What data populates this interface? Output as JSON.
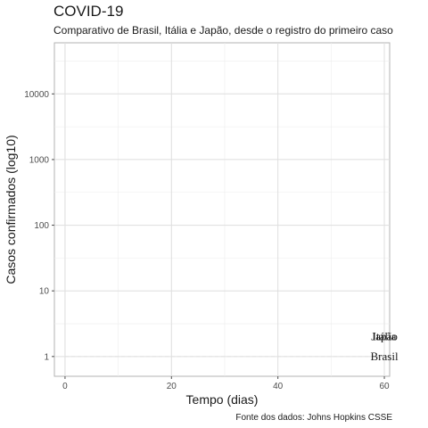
{
  "chart_data": {
    "type": "line",
    "title": "COVID-19",
    "subtitle": "Comparativo de Brasil, Itália e Japão, desde o registro do primeiro caso",
    "xlabel": "Tempo (dias)",
    "ylabel": "Casos confirmados (log10)",
    "caption": "Fonte dos dados: Johns Hopkins CSSE",
    "xlim": [
      -2,
      61
    ],
    "x_ticks": [
      0,
      20,
      40,
      60
    ],
    "y_scale": "log10",
    "ylim": [
      0.5,
      60000
    ],
    "y_ticks": [
      1,
      10,
      100,
      1000,
      10000
    ],
    "y_tick_labels": [
      "1",
      "10",
      "100",
      "1000",
      "10000"
    ],
    "grid": true,
    "series": [
      {
        "name": "Brasil",
        "points": [
          [
            0,
            1
          ],
          [
            60,
            1
          ]
        ]
      },
      {
        "name": "Itália",
        "points": [
          [
            60,
            2
          ]
        ]
      },
      {
        "name": "Japão",
        "points": [
          [
            60,
            2
          ]
        ]
      }
    ]
  }
}
